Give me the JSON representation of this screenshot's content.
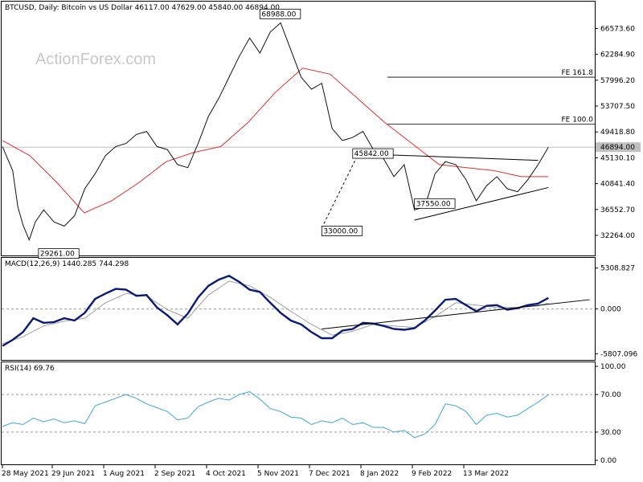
{
  "header": {
    "main": "BTCUSD, Daily:  Bitcoin vs US Dollar  46117.00 47629.00 45840.00 46894.00",
    "macd": "MACD(12,26,9) 1440.285 744.298",
    "rsi": "RSI(14) 69.76"
  },
  "watermark": "ActionForex.com",
  "colors": {
    "price": "#111111",
    "ma": "#e0302f",
    "macd": "#0a1a78",
    "signal": "#a0a0a0",
    "rsi": "#3fa7d6",
    "lines": "#000000"
  },
  "chart_data": {
    "type": "line",
    "x_labels": [
      "28 May 2021",
      "29 Jun 2021",
      "1 Aug 2021",
      "2 Sep 2021",
      "4 Oct 2021",
      "5 Nov 2021",
      "7 Dec 2021",
      "8 Jan 2022",
      "9 Feb 2022",
      "13 Mar 2022"
    ],
    "price": {
      "yticks": [
        "66573.60",
        "62284.90",
        "57996.20",
        "53707.50",
        "49418.80",
        "45130.10",
        "40841.40",
        "36552.70",
        "32264.00"
      ],
      "ylim": [
        29200,
        70500
      ],
      "labels": [
        {
          "text": "68988.00",
          "x": 25.0,
          "y": 68988
        },
        {
          "text": "45842.00",
          "x": 34.0,
          "y": 45842
        },
        {
          "text": "37550.00",
          "x": 40.0,
          "y": 37550
        },
        {
          "text": "33000.00",
          "x": 31.0,
          "y": 33000
        },
        {
          "text": "29261.00",
          "x": 3.5,
          "y": 29261
        }
      ],
      "current": {
        "text": "46894.00",
        "value": 46894
      },
      "fib": [
        {
          "label": "FE 161.8",
          "value": 58500
        },
        {
          "label": "FE 100.0",
          "value": 50700
        }
      ],
      "close_points": [
        [
          0,
          47000
        ],
        [
          1,
          43000
        ],
        [
          1.5,
          37000
        ],
        [
          2,
          34000
        ],
        [
          2.6,
          31500
        ],
        [
          3.2,
          34500
        ],
        [
          4,
          36500
        ],
        [
          5,
          34500
        ],
        [
          6,
          33800
        ],
        [
          7,
          35500
        ],
        [
          8,
          40000
        ],
        [
          9,
          42500
        ],
        [
          10,
          45500
        ],
        [
          11,
          47000
        ],
        [
          12,
          47500
        ],
        [
          13,
          49000
        ],
        [
          14,
          49500
        ],
        [
          15,
          47000
        ],
        [
          16,
          46500
        ],
        [
          17,
          44000
        ],
        [
          18,
          43500
        ],
        [
          19,
          47500
        ],
        [
          20,
          52000
        ],
        [
          21,
          55000
        ],
        [
          22,
          58500
        ],
        [
          23,
          62000
        ],
        [
          24,
          65000
        ],
        [
          25,
          62500
        ],
        [
          26,
          66000
        ],
        [
          27,
          67500
        ],
        [
          28,
          63000
        ],
        [
          29,
          58500
        ],
        [
          30,
          56500
        ],
        [
          31,
          57500
        ],
        [
          32,
          50000
        ],
        [
          33,
          48000
        ],
        [
          34,
          48500
        ],
        [
          35,
          49500
        ],
        [
          36,
          46500
        ],
        [
          37,
          45000
        ],
        [
          38,
          42000
        ],
        [
          39,
          44000
        ],
        [
          40,
          36500
        ],
        [
          41,
          37000
        ],
        [
          42,
          42500
        ],
        [
          43,
          44500
        ],
        [
          44,
          44000
        ],
        [
          45,
          41500
        ],
        [
          46,
          38000
        ],
        [
          47,
          40500
        ],
        [
          48,
          42000
        ],
        [
          49,
          40000
        ],
        [
          50,
          39500
        ],
        [
          51,
          41500
        ],
        [
          52,
          44000
        ],
        [
          53,
          46894
        ]
      ],
      "ma_points": [
        [
          0,
          48000
        ],
        [
          1,
          45500
        ],
        [
          2,
          41000
        ],
        [
          3,
          36000
        ],
        [
          4,
          38000
        ],
        [
          5,
          41000
        ],
        [
          6,
          44500
        ],
        [
          7,
          46000
        ],
        [
          8,
          47000
        ],
        [
          9,
          51000
        ],
        [
          10,
          56000
        ],
        [
          11,
          60000
        ],
        [
          12,
          59000
        ],
        [
          13,
          55000
        ],
        [
          14,
          51000
        ],
        [
          15,
          47500
        ],
        [
          16,
          44000
        ],
        [
          17,
          43500
        ],
        [
          18,
          43000
        ],
        [
          19,
          42000
        ],
        [
          20,
          42000
        ]
      ],
      "ma_x_end": 53.0,
      "trendlines": [
        {
          "from": [
            40.0,
            34800
          ],
          "to": [
            53.0,
            40200
          ]
        },
        {
          "from": [
            34.0,
            45842
          ],
          "to": [
            52.0,
            44700
          ]
        }
      ],
      "dashed_line": {
        "from": [
          31.0,
          33500
        ],
        "to": [
          34.5,
          45600
        ]
      }
    },
    "macd": {
      "yticks": [
        "5308.827",
        "0.000",
        "-5807.096"
      ],
      "ylim": [
        -6400,
        6000
      ],
      "macd_points": [
        [
          0,
          -4800
        ],
        [
          1,
          -4000
        ],
        [
          2,
          -3000
        ],
        [
          3,
          -1200
        ],
        [
          4,
          -1800
        ],
        [
          5,
          -1700
        ],
        [
          6,
          -1200
        ],
        [
          7,
          -1500
        ],
        [
          8,
          -500
        ],
        [
          9,
          1300
        ],
        [
          10,
          2000
        ],
        [
          11,
          2600
        ],
        [
          12,
          2500
        ],
        [
          13,
          1700
        ],
        [
          14,
          1800
        ],
        [
          15,
          200
        ],
        [
          16,
          -800
        ],
        [
          17,
          -2000
        ],
        [
          18,
          -600
        ],
        [
          19,
          1500
        ],
        [
          20,
          3000
        ],
        [
          21,
          3800
        ],
        [
          22,
          4300
        ],
        [
          23,
          3500
        ],
        [
          24,
          2500
        ],
        [
          25,
          2200
        ],
        [
          26,
          800
        ],
        [
          27,
          -500
        ],
        [
          28,
          -1500
        ],
        [
          29,
          -2000
        ],
        [
          30,
          -3000
        ],
        [
          31,
          -3800
        ],
        [
          32,
          -3800
        ],
        [
          33,
          -2800
        ],
        [
          34,
          -2600
        ],
        [
          35,
          -1800
        ],
        [
          36,
          -1900
        ],
        [
          37,
          -2200
        ],
        [
          38,
          -2600
        ],
        [
          39,
          -2700
        ],
        [
          40,
          -2500
        ],
        [
          41,
          -1500
        ],
        [
          42,
          -200
        ],
        [
          43,
          1200
        ],
        [
          44,
          1300
        ],
        [
          45,
          500
        ],
        [
          46,
          -300
        ],
        [
          47,
          400
        ],
        [
          48,
          500
        ],
        [
          49,
          -100
        ],
        [
          50,
          100
        ],
        [
          51,
          500
        ],
        [
          52,
          700
        ],
        [
          53,
          1440
        ]
      ],
      "signal_points": [
        [
          0,
          -4500
        ],
        [
          2,
          -3600
        ],
        [
          4,
          -2200
        ],
        [
          6,
          -1600
        ],
        [
          8,
          -1200
        ],
        [
          10,
          800
        ],
        [
          12,
          2000
        ],
        [
          14,
          1700
        ],
        [
          16,
          -100
        ],
        [
          18,
          -1200
        ],
        [
          20,
          1800
        ],
        [
          22,
          3600
        ],
        [
          24,
          3000
        ],
        [
          26,
          1500
        ],
        [
          28,
          -300
        ],
        [
          30,
          -2000
        ],
        [
          32,
          -3400
        ],
        [
          34,
          -2900
        ],
        [
          36,
          -2000
        ],
        [
          38,
          -2200
        ],
        [
          40,
          -2400
        ],
        [
          42,
          -1000
        ],
        [
          44,
          800
        ],
        [
          46,
          500
        ],
        [
          48,
          200
        ],
        [
          50,
          200
        ],
        [
          52,
          400
        ],
        [
          53,
          744
        ]
      ],
      "trendline": {
        "from": [
          31.0,
          -2600
        ],
        "to": [
          57.0,
          1200
        ]
      }
    },
    "rsi": {
      "yticks": [
        "100.00",
        "70.00",
        "30.00",
        "0.00"
      ],
      "ylim": [
        0,
        100
      ],
      "levels": [
        70,
        30
      ],
      "points": [
        [
          0,
          36
        ],
        [
          1,
          40
        ],
        [
          2,
          38
        ],
        [
          3,
          45
        ],
        [
          4,
          41
        ],
        [
          5,
          44
        ],
        [
          6,
          40
        ],
        [
          7,
          42
        ],
        [
          8,
          39
        ],
        [
          9,
          58
        ],
        [
          10,
          62
        ],
        [
          11,
          66
        ],
        [
          12,
          70
        ],
        [
          13,
          66
        ],
        [
          14,
          60
        ],
        [
          15,
          56
        ],
        [
          16,
          52
        ],
        [
          17,
          43
        ],
        [
          18,
          45
        ],
        [
          19,
          57
        ],
        [
          20,
          62
        ],
        [
          21,
          66
        ],
        [
          22,
          64
        ],
        [
          23,
          70
        ],
        [
          24,
          73
        ],
        [
          25,
          65
        ],
        [
          26,
          55
        ],
        [
          27,
          52
        ],
        [
          28,
          46
        ],
        [
          29,
          45
        ],
        [
          30,
          38
        ],
        [
          31,
          42
        ],
        [
          32,
          40
        ],
        [
          33,
          45
        ],
        [
          34,
          38
        ],
        [
          35,
          40
        ],
        [
          36,
          35
        ],
        [
          37,
          35
        ],
        [
          38,
          30
        ],
        [
          39,
          32
        ],
        [
          40,
          24
        ],
        [
          41,
          28
        ],
        [
          42,
          38
        ],
        [
          43,
          60
        ],
        [
          44,
          58
        ],
        [
          45,
          52
        ],
        [
          46,
          38
        ],
        [
          47,
          48
        ],
        [
          48,
          50
        ],
        [
          49,
          46
        ],
        [
          50,
          48
        ],
        [
          51,
          55
        ],
        [
          52,
          62
        ],
        [
          53,
          69.76
        ]
      ]
    }
  }
}
